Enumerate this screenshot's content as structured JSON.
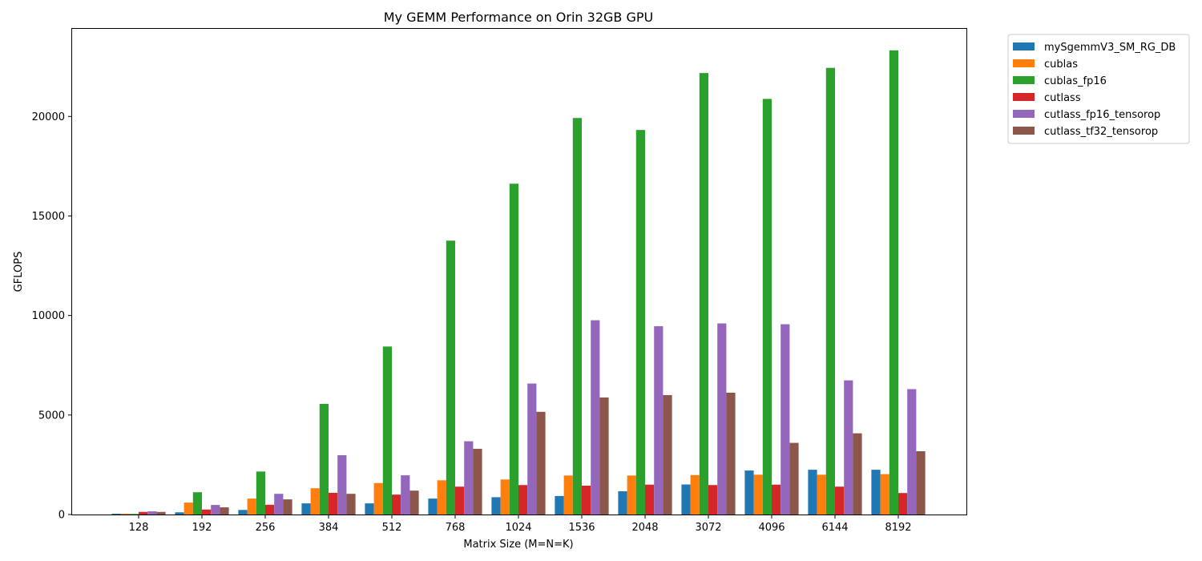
{
  "chart_data": {
    "type": "bar",
    "title": "My GEMM Performance on Orin 32GB GPU",
    "xlabel": "Matrix Size (M=N=K)",
    "ylabel": "GFLOPS",
    "categories": [
      "128",
      "192",
      "256",
      "384",
      "512",
      "768",
      "1024",
      "1536",
      "2048",
      "3072",
      "4096",
      "6144",
      "8192"
    ],
    "ylim": [
      0,
      24400
    ],
    "yticks": [
      0,
      5000,
      10000,
      15000,
      20000
    ],
    "grid": false,
    "legend_position": "outside-top-right",
    "series": [
      {
        "name": "mySgemmV3_SM_RG_DB",
        "color": "#1f77b4",
        "values": [
          40,
          110,
          230,
          560,
          560,
          800,
          870,
          930,
          1170,
          1510,
          2210,
          2250,
          2250
        ]
      },
      {
        "name": "cublas",
        "color": "#ff7f0e",
        "values": [
          40,
          600,
          800,
          1320,
          1580,
          1720,
          1760,
          1960,
          1960,
          1980,
          2000,
          2000,
          2030
        ]
      },
      {
        "name": "cublas_fp16",
        "color": "#2ca02c",
        "values": [
          30,
          1120,
          2160,
          5560,
          8440,
          13760,
          16620,
          19920,
          19320,
          22180,
          20880,
          22440,
          23320
        ]
      },
      {
        "name": "cutlass",
        "color": "#d62728",
        "values": [
          130,
          250,
          490,
          1090,
          1000,
          1400,
          1480,
          1450,
          1500,
          1480,
          1500,
          1400,
          1080
        ]
      },
      {
        "name": "cutlass_fp16_tensorop",
        "color": "#9467bd",
        "values": [
          160,
          480,
          1040,
          2980,
          1970,
          3680,
          6580,
          9760,
          9460,
          9600,
          9560,
          6740,
          6300
        ]
      },
      {
        "name": "cutlass_tf32_tensorop",
        "color": "#8c564b",
        "values": [
          130,
          360,
          760,
          1040,
          1200,
          3300,
          5160,
          5880,
          6000,
          6120,
          3600,
          4080,
          3180
        ]
      }
    ]
  }
}
